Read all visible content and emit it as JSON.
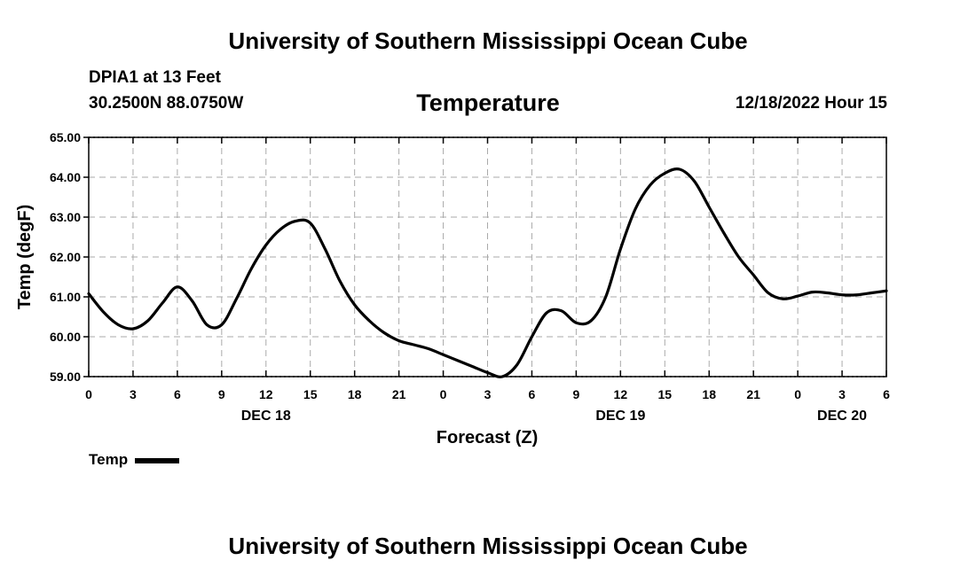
{
  "page": {
    "title": "University of Southern Mississippi Ocean Cube",
    "footer_title": "University of Southern Mississippi Ocean Cube",
    "station": "DPIA1 at 13 Feet",
    "coords": "30.2500N  88.0750W",
    "subtitle": "Temperature",
    "datetime": "12/18/2022 Hour 15"
  },
  "chart_data": {
    "type": "line",
    "title": "Temperature",
    "xlabel": "Forecast (Z)",
    "ylabel": "Temp (degF)",
    "xlim": [
      0,
      54
    ],
    "ylim": [
      59,
      65
    ],
    "xticks": [
      0,
      3,
      6,
      9,
      12,
      15,
      18,
      21,
      24,
      27,
      30,
      33,
      36,
      39,
      42,
      45,
      48,
      51,
      54
    ],
    "xtick_labels": [
      "0",
      "3",
      "6",
      "9",
      "12",
      "15",
      "18",
      "21",
      "0",
      "3",
      "6",
      "9",
      "12",
      "15",
      "18",
      "21",
      "0",
      "3",
      "6"
    ],
    "day_labels": [
      {
        "x": 12,
        "label": "DEC 18"
      },
      {
        "x": 36,
        "label": "DEC 19"
      },
      {
        "x": 51,
        "label": "DEC 20"
      }
    ],
    "yticks": [
      59,
      60,
      61,
      62,
      63,
      64,
      65
    ],
    "ytick_labels": [
      "59.00",
      "60.00",
      "61.00",
      "62.00",
      "63.00",
      "64.00",
      "65.00"
    ],
    "grid": true,
    "series": [
      {
        "name": "Temp",
        "color": "#000000",
        "x": [
          0,
          1,
          2,
          3,
          4,
          5,
          6,
          7,
          8,
          9,
          10,
          11,
          12,
          13,
          14,
          15,
          16,
          17,
          18,
          19,
          20,
          21,
          22,
          23,
          24,
          25,
          26,
          27,
          28,
          29,
          30,
          31,
          32,
          33,
          34,
          35,
          36,
          37,
          38,
          39,
          40,
          41,
          42,
          43,
          44,
          45,
          46,
          47,
          48,
          49,
          50,
          51,
          52,
          53,
          54
        ],
        "y": [
          61.08,
          60.62,
          60.3,
          60.2,
          60.4,
          60.85,
          61.25,
          60.9,
          60.3,
          60.3,
          60.95,
          61.7,
          62.3,
          62.7,
          62.9,
          62.85,
          62.2,
          61.4,
          60.8,
          60.4,
          60.1,
          59.9,
          59.8,
          59.7,
          59.55,
          59.4,
          59.25,
          59.1,
          59.0,
          59.3,
          60.0,
          60.6,
          60.65,
          60.35,
          60.4,
          61.0,
          62.2,
          63.2,
          63.8,
          64.1,
          64.2,
          63.9,
          63.25,
          62.6,
          62.0,
          61.55,
          61.1,
          60.95,
          61.02,
          61.12,
          61.1,
          61.05,
          61.05,
          61.1,
          61.15
        ]
      }
    ],
    "legend": [
      {
        "label": "Temp",
        "color": "#000000"
      }
    ],
    "legend_position": "bottom-left"
  }
}
